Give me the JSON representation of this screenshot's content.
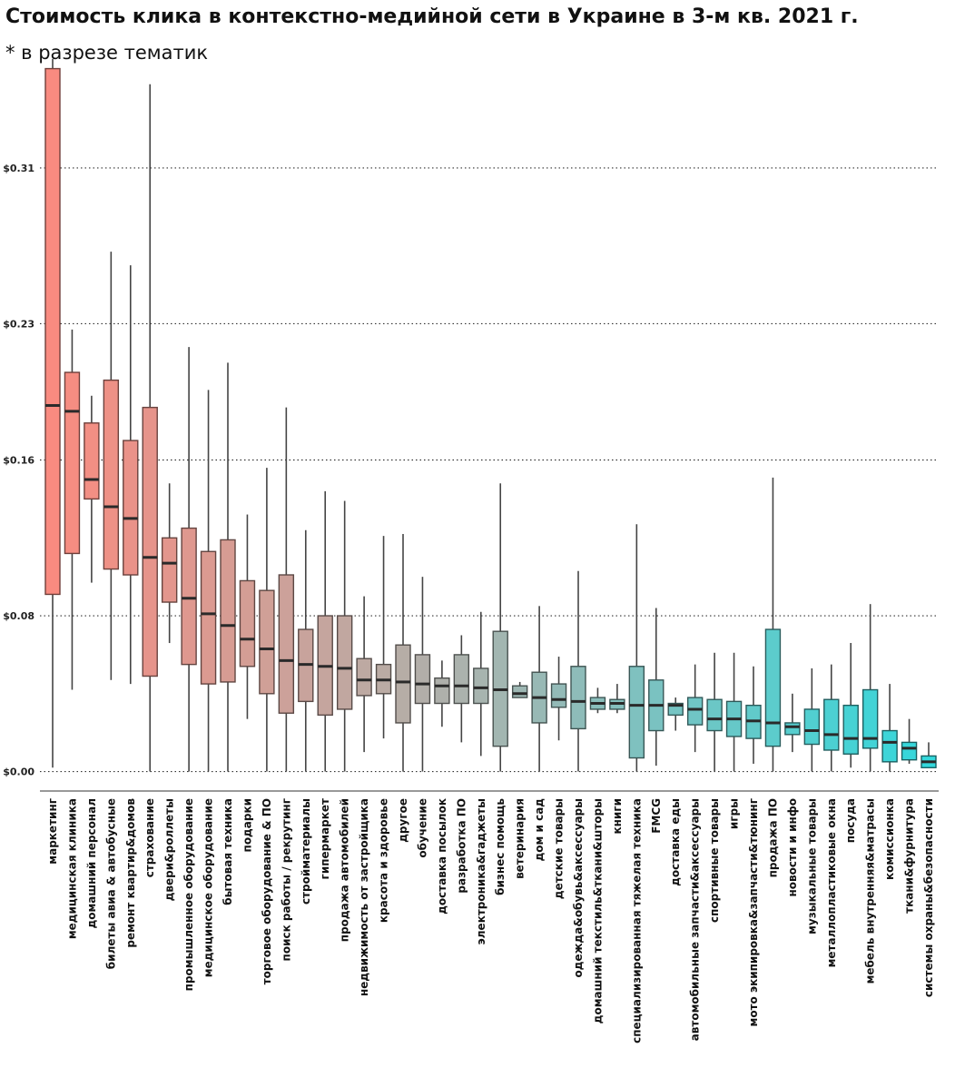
{
  "chart_data": {
    "type": "box",
    "title": "Стоимость клика в контекстно-медийной сети в Украине в 3-м кв. 2021 г.",
    "subtitle": "* в разрезе тематик",
    "xlabel": "",
    "ylabel": "",
    "ylim": [
      -0.01,
      0.358
    ],
    "yticks": [
      0.0,
      0.08,
      0.16,
      0.23,
      0.31
    ],
    "ytick_labels": [
      "$0.00",
      "$0.08",
      "$0.16",
      "$0.23",
      "$0.31"
    ],
    "grid": "horizontal dotted",
    "colors": {
      "start": "#f98b80",
      "mid": "#a5b5b0",
      "end": "#33d8dc"
    },
    "categories": [
      "маркетинг",
      "медицинская клиника",
      "домашний персонал",
      "билеты авиа & автобусные",
      "ремонт квартир&домов",
      "страхование",
      "двери&роллеты",
      "промышленное оборудование",
      "медицинское оборудование",
      "бытовая техника",
      "подарки",
      "торговое оборудование & ПО",
      "поиск работы / рекрутинг",
      "стройматериалы",
      "гипермаркет",
      "продажа автомобилей",
      "недвижимость от застройщика",
      "красота и здоровье",
      "другое",
      "обучение",
      "доставка посылок",
      "разработка ПО",
      "электроника&гаджеты",
      "бизнес помощь",
      "ветеринария",
      "дом и сад",
      "детские товары",
      "одежда&обувь&аксессуары",
      "домашний текстиль&ткани&шторы",
      "книги",
      "специализированная тяжелая техника",
      "FMCG",
      "доставка еды",
      "автомобильные запчасти&аксессуары",
      "спортивные товары",
      "игры",
      "мото экипировка&запчасти&тюнинг",
      "продажа ПО",
      "новости и инфо",
      "музыкальные товары",
      "металлопластиковые окна",
      "посуда",
      "мебель внутренняя&матрасы",
      "комиссионка",
      "ткани&фурнитура",
      "системы охраны&безопасности"
    ],
    "boxes": [
      {
        "min": 0.002,
        "q1": 0.091,
        "median": 0.188,
        "q3": 0.361,
        "max": 0.366
      },
      {
        "min": 0.042,
        "q1": 0.112,
        "median": 0.185,
        "q3": 0.205,
        "max": 0.227
      },
      {
        "min": 0.097,
        "q1": 0.14,
        "median": 0.15,
        "q3": 0.179,
        "max": 0.193
      },
      {
        "min": 0.047,
        "q1": 0.104,
        "median": 0.136,
        "q3": 0.201,
        "max": 0.267
      },
      {
        "min": 0.045,
        "q1": 0.101,
        "median": 0.13,
        "q3": 0.17,
        "max": 0.26
      },
      {
        "min": 0.0,
        "q1": 0.049,
        "median": 0.11,
        "q3": 0.187,
        "max": 0.353
      },
      {
        "min": 0.066,
        "q1": 0.087,
        "median": 0.107,
        "q3": 0.12,
        "max": 0.148
      },
      {
        "min": 0.0,
        "q1": 0.055,
        "median": 0.089,
        "q3": 0.125,
        "max": 0.218
      },
      {
        "min": 0.0,
        "q1": 0.045,
        "median": 0.081,
        "q3": 0.113,
        "max": 0.196
      },
      {
        "min": 0.0,
        "q1": 0.046,
        "median": 0.075,
        "q3": 0.119,
        "max": 0.21
      },
      {
        "min": 0.027,
        "q1": 0.054,
        "median": 0.068,
        "q3": 0.098,
        "max": 0.132
      },
      {
        "min": 0.0,
        "q1": 0.04,
        "median": 0.063,
        "q3": 0.093,
        "max": 0.156
      },
      {
        "min": 0.0,
        "q1": 0.03,
        "median": 0.057,
        "q3": 0.101,
        "max": 0.187
      },
      {
        "min": 0.0,
        "q1": 0.036,
        "median": 0.055,
        "q3": 0.073,
        "max": 0.124
      },
      {
        "min": 0.0,
        "q1": 0.029,
        "median": 0.054,
        "q3": 0.08,
        "max": 0.144
      },
      {
        "min": 0.0,
        "q1": 0.032,
        "median": 0.053,
        "q3": 0.08,
        "max": 0.139
      },
      {
        "min": 0.01,
        "q1": 0.039,
        "median": 0.047,
        "q3": 0.058,
        "max": 0.09
      },
      {
        "min": 0.017,
        "q1": 0.04,
        "median": 0.047,
        "q3": 0.055,
        "max": 0.121
      },
      {
        "min": 0.0,
        "q1": 0.025,
        "median": 0.046,
        "q3": 0.065,
        "max": 0.122
      },
      {
        "min": 0.0,
        "q1": 0.035,
        "median": 0.045,
        "q3": 0.06,
        "max": 0.1
      },
      {
        "min": 0.023,
        "q1": 0.035,
        "median": 0.044,
        "q3": 0.048,
        "max": 0.057
      },
      {
        "min": 0.015,
        "q1": 0.035,
        "median": 0.044,
        "q3": 0.06,
        "max": 0.07
      },
      {
        "min": 0.008,
        "q1": 0.035,
        "median": 0.043,
        "q3": 0.053,
        "max": 0.082
      },
      {
        "min": 0.0,
        "q1": 0.013,
        "median": 0.042,
        "q3": 0.072,
        "max": 0.148
      },
      {
        "min": 0.038,
        "q1": 0.038,
        "median": 0.04,
        "q3": 0.044,
        "max": 0.046
      },
      {
        "min": 0.0,
        "q1": 0.025,
        "median": 0.038,
        "q3": 0.051,
        "max": 0.085
      },
      {
        "min": 0.016,
        "q1": 0.033,
        "median": 0.037,
        "q3": 0.045,
        "max": 0.059
      },
      {
        "min": 0.0,
        "q1": 0.022,
        "median": 0.036,
        "q3": 0.054,
        "max": 0.103
      },
      {
        "min": 0.03,
        "q1": 0.032,
        "median": 0.035,
        "q3": 0.038,
        "max": 0.043
      },
      {
        "min": 0.03,
        "q1": 0.032,
        "median": 0.035,
        "q3": 0.037,
        "max": 0.045
      },
      {
        "min": 0.0,
        "q1": 0.007,
        "median": 0.034,
        "q3": 0.054,
        "max": 0.127
      },
      {
        "min": 0.003,
        "q1": 0.021,
        "median": 0.034,
        "q3": 0.047,
        "max": 0.084
      },
      {
        "min": 0.021,
        "q1": 0.029,
        "median": 0.034,
        "q3": 0.035,
        "max": 0.038
      },
      {
        "min": 0.01,
        "q1": 0.024,
        "median": 0.032,
        "q3": 0.038,
        "max": 0.055
      },
      {
        "min": 0.0,
        "q1": 0.021,
        "median": 0.027,
        "q3": 0.037,
        "max": 0.061
      },
      {
        "min": 0.0,
        "q1": 0.018,
        "median": 0.027,
        "q3": 0.036,
        "max": 0.061
      },
      {
        "min": 0.004,
        "q1": 0.017,
        "median": 0.026,
        "q3": 0.034,
        "max": 0.054
      },
      {
        "min": 0.0,
        "q1": 0.013,
        "median": 0.025,
        "q3": 0.073,
        "max": 0.151
      },
      {
        "min": 0.01,
        "q1": 0.019,
        "median": 0.023,
        "q3": 0.025,
        "max": 0.04
      },
      {
        "min": 0.0,
        "q1": 0.014,
        "median": 0.021,
        "q3": 0.032,
        "max": 0.053
      },
      {
        "min": 0.0,
        "q1": 0.011,
        "median": 0.019,
        "q3": 0.037,
        "max": 0.055
      },
      {
        "min": 0.002,
        "q1": 0.009,
        "median": 0.017,
        "q3": 0.034,
        "max": 0.066
      },
      {
        "min": 0.0,
        "q1": 0.012,
        "median": 0.017,
        "q3": 0.042,
        "max": 0.086
      },
      {
        "min": 0.0,
        "q1": 0.005,
        "median": 0.015,
        "q3": 0.021,
        "max": 0.045
      },
      {
        "min": 0.004,
        "q1": 0.006,
        "median": 0.012,
        "q3": 0.015,
        "max": 0.027
      },
      {
        "min": 0.002,
        "q1": 0.002,
        "median": 0.005,
        "q3": 0.008,
        "max": 0.015
      }
    ]
  }
}
